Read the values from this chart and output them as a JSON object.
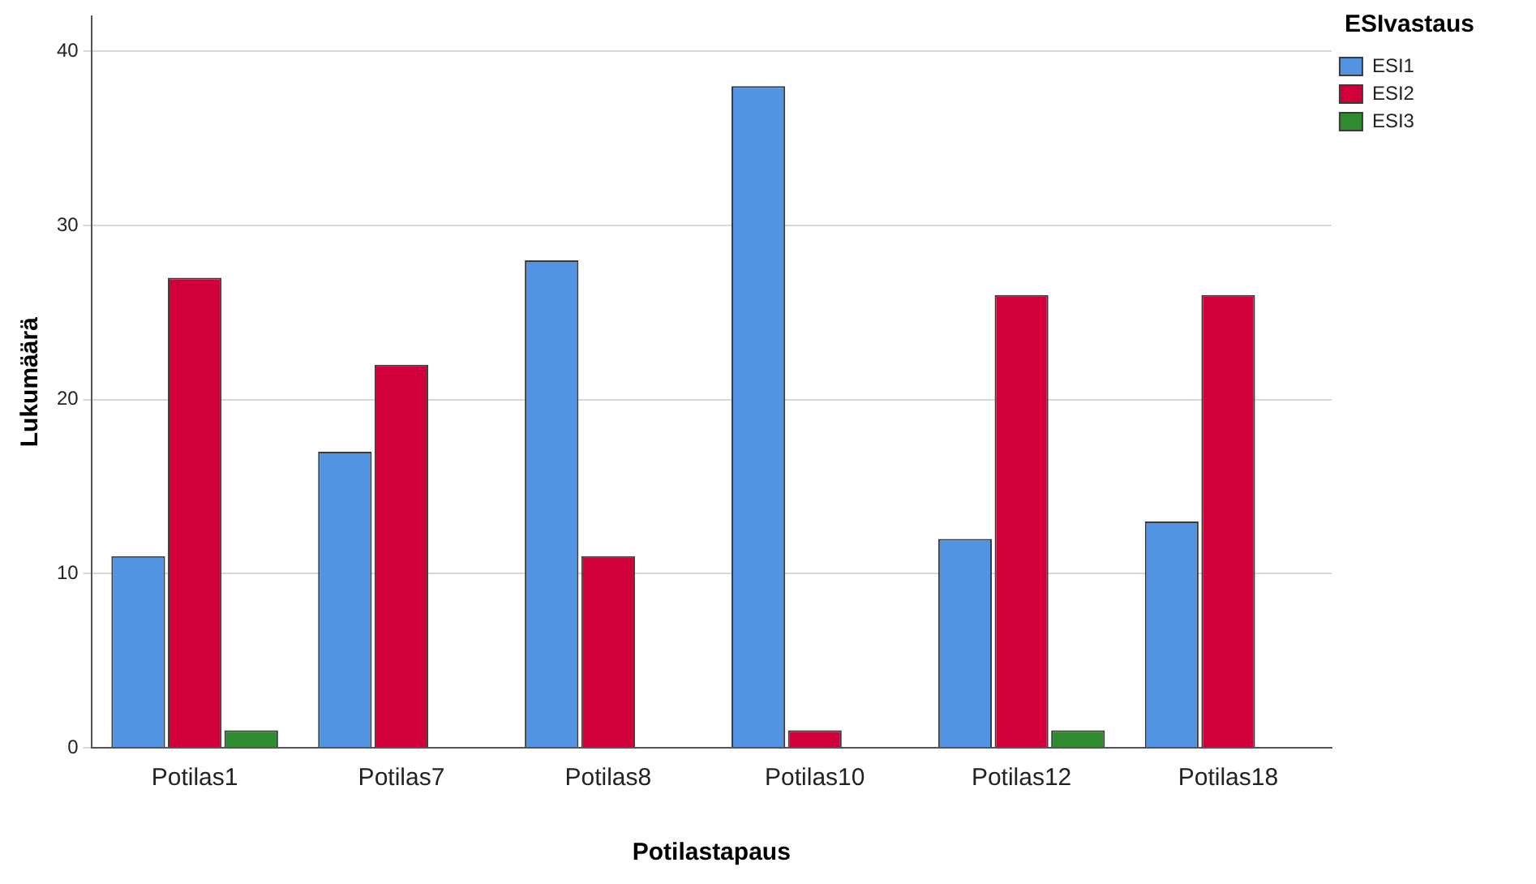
{
  "chart_data": {
    "type": "bar",
    "xlabel": "Potilastapaus",
    "ylabel": "Lukumäärä",
    "legend_title": "ESIvastaus",
    "categories": [
      "Potilas1",
      "Potilas7",
      "Potilas8",
      "Potilas10",
      "Potilas12",
      "Potilas18"
    ],
    "series": [
      {
        "name": "ESI1",
        "color": "#5294e2",
        "values": [
          11,
          17,
          28,
          38,
          12,
          13
        ]
      },
      {
        "name": "ESI2",
        "color": "#d1003a",
        "values": [
          27,
          22,
          11,
          1,
          26,
          26
        ]
      },
      {
        "name": "ESI3",
        "color": "#2e8b2e",
        "values": [
          1,
          null,
          null,
          null,
          1,
          null
        ]
      }
    ],
    "ylim": [
      0,
      42
    ],
    "yticks": [
      0,
      10,
      20,
      30,
      40
    ],
    "grid": "y",
    "legend": "top right"
  }
}
